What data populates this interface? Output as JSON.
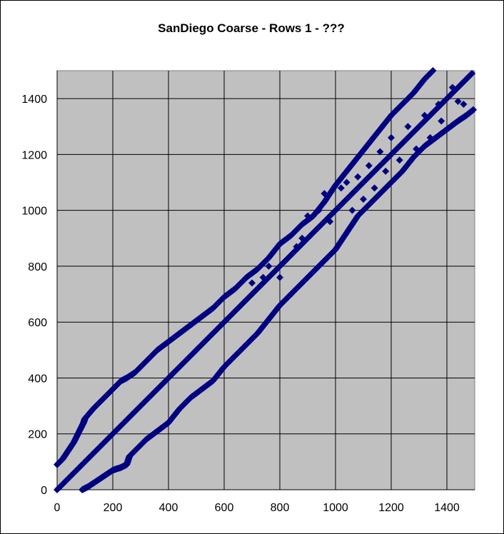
{
  "chart_data": {
    "type": "scatter",
    "title": "SanDiego Coarse - Rows 1 - ???",
    "xlabel": "",
    "ylabel": "",
    "xlim": [
      0,
      1500
    ],
    "ylim": [
      0,
      1500
    ],
    "xticks": [
      0,
      200,
      400,
      600,
      800,
      1000,
      1200,
      1400
    ],
    "yticks": [
      0,
      200,
      400,
      600,
      800,
      1000,
      1200,
      1400
    ],
    "grid": true,
    "legend": "none",
    "plot_background": "#C0C0C0",
    "marker_color": "#000080",
    "marker": "diamond",
    "series": [
      {
        "description_free": true,
        "x": [
          0,
          50,
          100,
          150,
          200,
          250,
          300,
          350,
          400,
          450,
          500,
          550,
          600,
          650,
          700,
          750,
          800,
          850,
          900,
          950,
          1000,
          1050,
          1100,
          1150,
          1200,
          1250,
          1300,
          1350,
          1400,
          1450,
          1490
        ],
        "y": [
          0,
          50,
          100,
          150,
          200,
          250,
          300,
          350,
          400,
          450,
          500,
          550,
          600,
          650,
          700,
          750,
          800,
          850,
          900,
          950,
          1000,
          1050,
          1100,
          1150,
          1200,
          1250,
          1300,
          1350,
          1400,
          1450,
          1490
        ]
      },
      {
        "x": [
          0,
          20,
          40,
          60,
          80,
          95,
          100,
          130,
          160,
          200,
          230,
          250,
          280,
          320,
          360,
          400,
          440,
          480,
          520,
          560,
          600,
          640,
          680,
          720,
          760,
          800,
          840,
          880,
          920,
          960,
          1000,
          1040,
          1080,
          1120,
          1160,
          1200,
          1240,
          1280,
          1320,
          1350
        ],
        "y": [
          90,
          110,
          140,
          170,
          210,
          240,
          255,
          290,
          320,
          360,
          390,
          400,
          420,
          460,
          500,
          530,
          560,
          590,
          620,
          650,
          690,
          720,
          760,
          790,
          830,
          880,
          910,
          950,
          980,
          1030,
          1090,
          1140,
          1190,
          1240,
          1290,
          1340,
          1380,
          1420,
          1470,
          1500
        ]
      },
      {
        "x": [
          90,
          110,
          140,
          170,
          200,
          230,
          250,
          260,
          280,
          320,
          360,
          400,
          440,
          480,
          520,
          560,
          600,
          640,
          680,
          720,
          760,
          800,
          840,
          880,
          920,
          960,
          1000,
          1040,
          1080,
          1120,
          1160,
          1200,
          1240,
          1280,
          1320,
          1360,
          1400,
          1440,
          1470,
          1495
        ],
        "y": [
          0,
          10,
          30,
          50,
          70,
          80,
          90,
          120,
          140,
          180,
          210,
          240,
          290,
          330,
          360,
          390,
          440,
          480,
          520,
          560,
          610,
          660,
          700,
          740,
          780,
          820,
          860,
          920,
          980,
          1020,
          1060,
          1100,
          1140,
          1190,
          1230,
          1260,
          1290,
          1320,
          1340,
          1360
        ]
      },
      {
        "x": [
          700,
          740,
          760,
          800,
          820,
          860,
          880,
          900,
          940,
          960,
          980,
          1020,
          1040,
          1060,
          1080,
          1100,
          1120,
          1140,
          1160,
          1180,
          1200,
          1230,
          1260,
          1290,
          1320,
          1340,
          1370,
          1380,
          1420,
          1440,
          1460
        ],
        "y": [
          740,
          760,
          800,
          760,
          820,
          870,
          900,
          980,
          1000,
          1060,
          960,
          1080,
          1100,
          1000,
          1120,
          1040,
          1160,
          1080,
          1210,
          1140,
          1260,
          1180,
          1300,
          1220,
          1340,
          1260,
          1380,
          1320,
          1440,
          1390,
          1380
        ]
      }
    ]
  }
}
